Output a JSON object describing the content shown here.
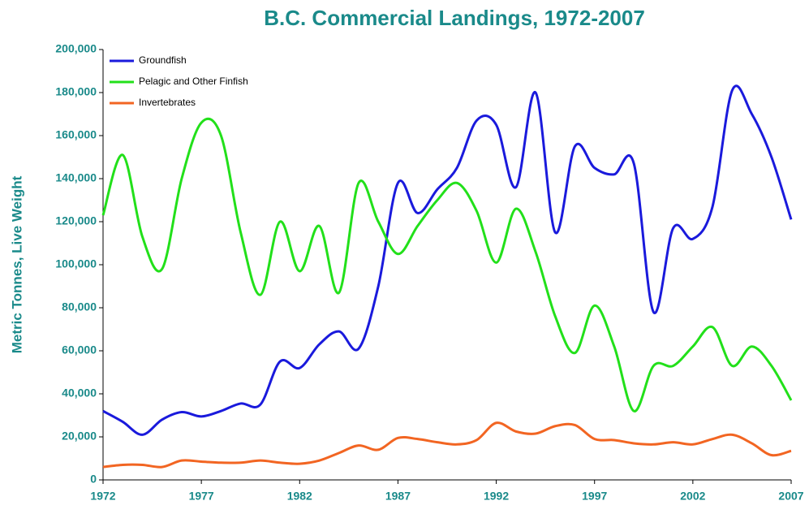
{
  "chart_data": {
    "type": "line",
    "title": "B.C. Commercial Landings, 1972-2007",
    "ylabel": "Metric Tonnes, Live Weight",
    "x": [
      1972,
      1973,
      1974,
      1975,
      1976,
      1977,
      1978,
      1979,
      1980,
      1981,
      1982,
      1983,
      1984,
      1985,
      1986,
      1987,
      1988,
      1989,
      1990,
      1991,
      1992,
      1993,
      1994,
      1995,
      1996,
      1997,
      1998,
      1999,
      2000,
      2001,
      2002,
      2003,
      2004,
      2005,
      2006,
      2007
    ],
    "series": [
      {
        "name": "Groundfish",
        "color": "#1a1adc",
        "values": [
          32000,
          27000,
          21000,
          28000,
          31500,
          29500,
          32000,
          35500,
          35000,
          55000,
          52000,
          63000,
          69000,
          61000,
          90000,
          138000,
          124000,
          135000,
          145000,
          167000,
          165000,
          136000,
          180000,
          115000,
          155000,
          145000,
          142000,
          147000,
          78000,
          117000,
          112000,
          127000,
          181000,
          170000,
          150000,
          121000
        ]
      },
      {
        "name": "Pelagic and Other Finfish",
        "color": "#22e01a",
        "values": [
          123000,
          151000,
          113000,
          98000,
          140000,
          166000,
          160000,
          115000,
          86000,
          120000,
          97000,
          118000,
          87000,
          138000,
          120000,
          105000,
          118000,
          130000,
          138000,
          125000,
          101000,
          126000,
          106000,
          76000,
          59000,
          81000,
          62000,
          32000,
          53000,
          53000,
          62000,
          71000,
          53000,
          62000,
          53000,
          37000
        ]
      },
      {
        "name": "Invertebrates",
        "color": "#f26522",
        "values": [
          6000,
          7000,
          7000,
          6000,
          9000,
          8500,
          8000,
          8000,
          9000,
          8000,
          7500,
          9000,
          12500,
          16000,
          14000,
          19500,
          19000,
          17500,
          16500,
          18500,
          26500,
          22500,
          21500,
          25000,
          25500,
          19000,
          18500,
          17000,
          16500,
          17500,
          16500,
          19000,
          21000,
          17000,
          11500,
          13500
        ]
      }
    ],
    "xlim": [
      1972,
      2007
    ],
    "xticks": [
      1972,
      1977,
      1982,
      1987,
      1992,
      1997,
      2002,
      2007
    ],
    "ylim": [
      0,
      200000
    ],
    "yticks": [
      0,
      {
        "value": 20000,
        "label": "20,000"
      },
      {
        "value": 40000,
        "label": "40,000"
      },
      {
        "value": 60000,
        "label": "60,000"
      },
      {
        "value": 80000,
        "label": "80,000"
      },
      {
        "value": 100000,
        "label": "100,000"
      },
      {
        "value": 120000,
        "label": "120,000"
      },
      {
        "value": 140000,
        "label": "140,000"
      },
      {
        "value": 160000,
        "label": "160,000"
      },
      {
        "value": 180000,
        "label": "180,000"
      },
      {
        "value": 200000,
        "label": "200,000"
      }
    ],
    "legend": "upper left",
    "grid": false
  }
}
